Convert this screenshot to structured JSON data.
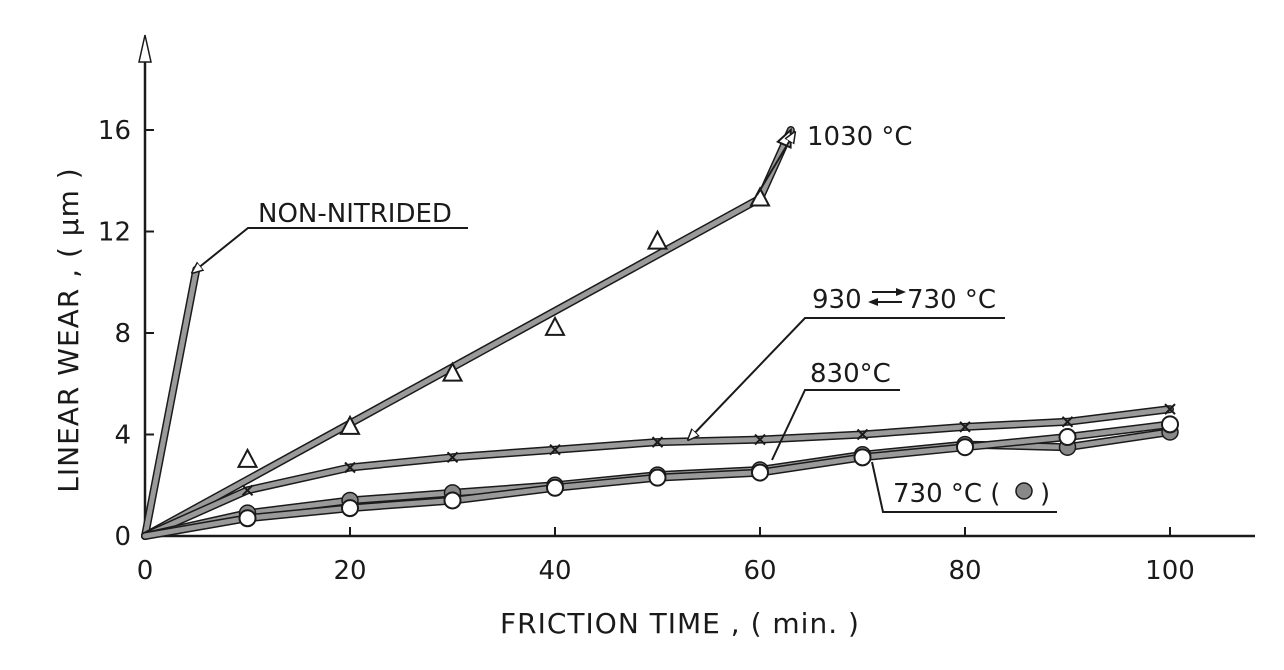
{
  "chart_data": {
    "type": "line",
    "title": "",
    "xlabel": "FRICTION TIME , ( min. )",
    "ylabel": "LINEAR WEAR , ( μm )",
    "xlim": [
      0,
      108
    ],
    "ylim": [
      0,
      19.5
    ],
    "x_ticks": [
      0,
      20,
      40,
      60,
      80,
      100
    ],
    "y_ticks": [
      0,
      4,
      8,
      12,
      16
    ],
    "grid": false,
    "legend": "none",
    "series": [
      {
        "name": "NON-NITRIDED",
        "marker": "none",
        "x": [
          0,
          5
        ],
        "y": [
          0,
          10.5
        ]
      },
      {
        "name": "1030 °C",
        "marker": "triangle",
        "x": [
          0,
          10,
          20,
          30,
          40,
          50,
          60
        ],
        "y": [
          0,
          3.0,
          4.3,
          6.4,
          8.2,
          11.6,
          13.3
        ],
        "line_x": [
          0,
          60,
          63
        ],
        "line_y": [
          0,
          13.3,
          16.0
        ]
      },
      {
        "name": "930 ⇄ 730 °C",
        "marker": "x",
        "x": [
          0,
          10,
          20,
          30,
          40,
          50,
          60,
          70,
          80,
          90,
          100
        ],
        "y": [
          0,
          1.8,
          2.7,
          3.1,
          3.4,
          3.7,
          3.8,
          4.0,
          4.3,
          4.5,
          5.0
        ]
      },
      {
        "name": "830°C",
        "marker": "filled-circle",
        "x": [
          0,
          10,
          20,
          30,
          40,
          50,
          60,
          70,
          80,
          90,
          100
        ],
        "y": [
          0,
          0.9,
          1.4,
          1.7,
          2.0,
          2.4,
          2.6,
          3.2,
          3.6,
          3.5,
          4.1
        ]
      },
      {
        "name": "730 °C ( ● )",
        "marker": "open-circle",
        "x": [
          0,
          10,
          20,
          30,
          40,
          50,
          60,
          70,
          80,
          90,
          100
        ],
        "y": [
          0,
          0.7,
          1.1,
          1.4,
          1.9,
          2.3,
          2.5,
          3.1,
          3.5,
          3.9,
          4.4
        ]
      }
    ],
    "annotations": {
      "non_nitrided": "NON-NITRIDED",
      "c1030": "1030 °C",
      "c930": "930",
      "c930_tail": "730 °C",
      "c830": "830°C",
      "c730": "730 °C ( ",
      "c730_tail": ")"
    },
    "colors": {
      "ink": "#1a1a1a",
      "line_fill": "#9a9a9a",
      "marker_fill": "#888888",
      "background": "#ffffff"
    }
  }
}
